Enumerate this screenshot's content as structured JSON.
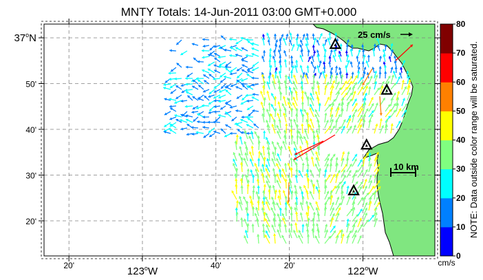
{
  "title": "MNTY Totals: 14-Jun-2011 03:00 GMT+0.000",
  "axes": {
    "y_ticks": [
      {
        "label": "37",
        "deg": true,
        "hemi": "N",
        "value_min": 0
      },
      {
        "label": "50'",
        "value_min": -10
      },
      {
        "label": "40'",
        "value_min": -20
      },
      {
        "label": "30'",
        "value_min": -30
      },
      {
        "label": "20'",
        "value_min": -40
      }
    ],
    "x_ticks": [
      {
        "label": "20'",
        "value_min": -20
      },
      {
        "label": "123",
        "deg": true,
        "hemi": "W",
        "value_min": 0
      },
      {
        "label": "40'",
        "value_min": 20
      },
      {
        "label": "20'",
        "value_min": 40
      },
      {
        "label": "122",
        "deg": true,
        "hemi": "W",
        "value_min": 60
      }
    ]
  },
  "reference_vector": {
    "label": "25 cm/s"
  },
  "scale_bar": {
    "label": "10 km"
  },
  "colorbar": {
    "ticks": [
      "0",
      "10",
      "20",
      "30",
      "40",
      "50",
      "60",
      "70",
      "80"
    ],
    "unit": "cm/s",
    "note": "NOTE: Data outside color range will be saturated.",
    "colors": [
      "#0000ff",
      "#0080ff",
      "#00ffff",
      "#80ff80",
      "#ffff00",
      "#ff8000",
      "#ff0000",
      "#800000"
    ]
  },
  "colors": {
    "land": "#80e680",
    "coast": "#000000",
    "grid": "#808080"
  },
  "stations": [
    {
      "name": "station-1",
      "lon_min": 52.5,
      "lat_min": -1.5
    },
    {
      "name": "station-2",
      "lon_min": 66.5,
      "lat_min": -11.5
    },
    {
      "name": "station-3",
      "lon_min": 61.0,
      "lat_min": -23.5
    },
    {
      "name": "station-4",
      "lon_min": 57.5,
      "lat_min": -33.5
    }
  ]
}
